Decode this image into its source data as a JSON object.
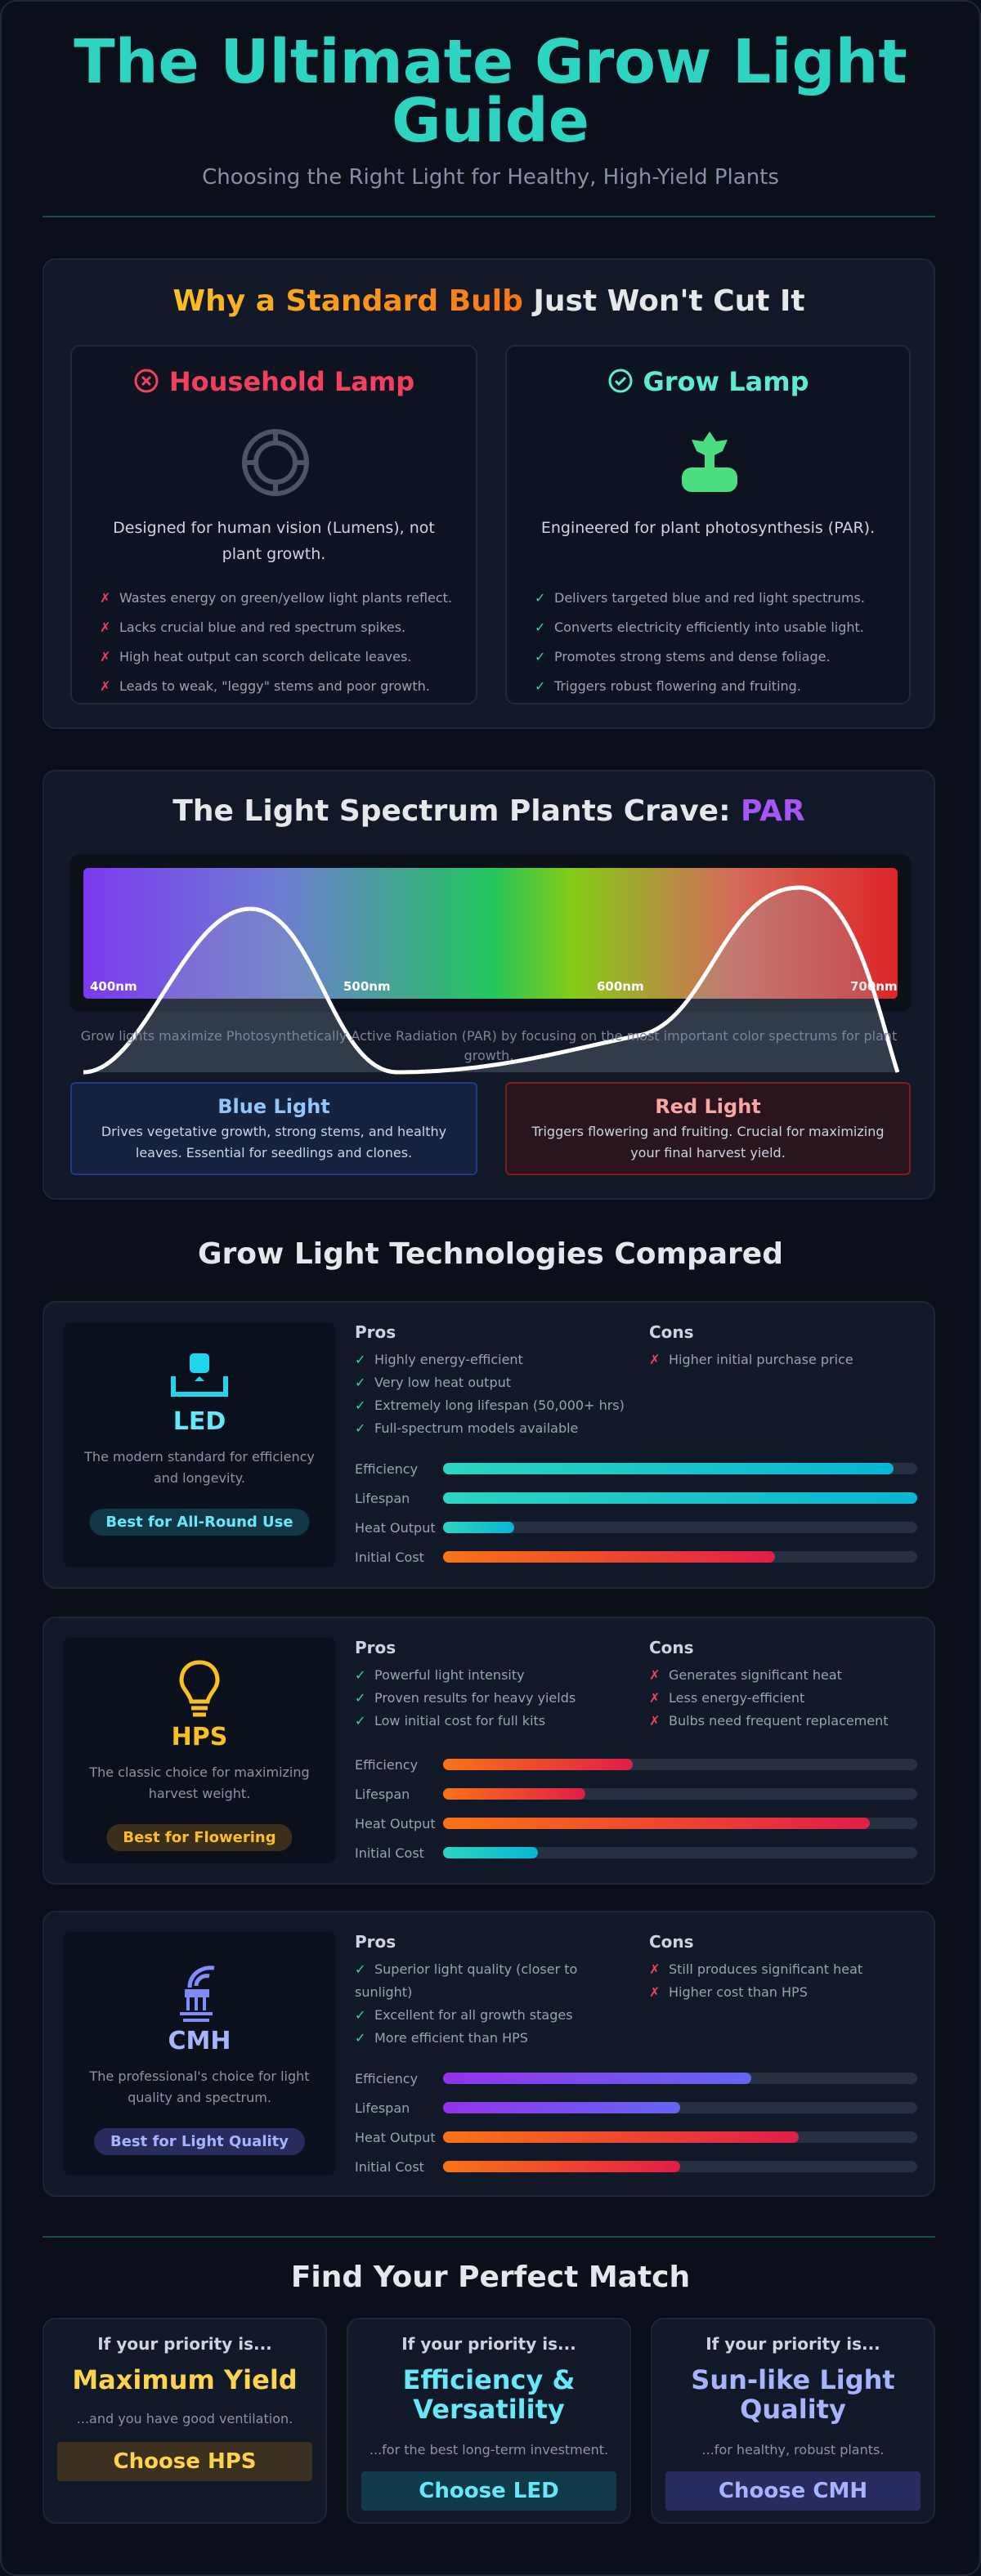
{
  "header": {
    "title": "The Ultimate Grow Light Guide",
    "subtitle": "Choosing the Right Light for Healthy, High-Yield Plants"
  },
  "why": {
    "title_highlight": "Why a Standard Bulb",
    "title_rest": "Just Won't Cut It",
    "household": {
      "title": "Household Lamp",
      "description": "Designed for human vision (Lumens), not plant growth.",
      "points": [
        "Wastes energy on green/yellow light plants reflect.",
        "Lacks crucial blue and red spectrum spikes.",
        "High heat output can scorch delicate leaves.",
        "Leads to weak, \"leggy\" stems and poor growth."
      ]
    },
    "grow": {
      "title": "Grow Lamp",
      "description": "Engineered for plant photosynthesis (PAR).",
      "points": [
        "Delivers targeted blue and red light spectrums.",
        "Converts electricity efficiently into usable light.",
        "Promotes strong stems and dense foliage.",
        "Triggers robust flowering and fruiting."
      ]
    }
  },
  "spectrum": {
    "title": "The Light Spectrum Plants Crave:",
    "title_highlight": "PAR",
    "wavelengths": [
      "400nm",
      "500nm",
      "600nm",
      "700nm"
    ],
    "caption": "Grow lights maximize Photosynthetically Active Radiation (PAR) by focusing on the most important color spectrums for plant growth.",
    "blue": {
      "title": "Blue Light",
      "text": "Drives vegetative growth, strong stems, and healthy leaves. Essential for seedlings and clones."
    },
    "red": {
      "title": "Red Light",
      "text": "Triggers flowering and fruiting. Crucial for maximizing your final harvest yield."
    }
  },
  "technologies": {
    "title": "Grow Light Technologies Compared",
    "pros_label": "Pros",
    "cons_label": "Cons",
    "items": [
      {
        "name": "LED",
        "description": "The modern standard for efficiency and longevity.",
        "badge": "Best for All-Round Use",
        "pros": [
          "Highly energy-efficient",
          "Very low heat output",
          "Extremely long lifespan (50,000+ hrs)",
          "Full-spectrum models available"
        ],
        "cons": [
          "Higher initial purchase price"
        ],
        "ratings": [
          {
            "label": "Efficiency",
            "value": 95,
            "colors": [
              "#2dd4bf",
              "#06b6d4"
            ]
          },
          {
            "label": "Lifespan",
            "value": 100,
            "colors": [
              "#2dd4bf",
              "#06b6d4"
            ]
          },
          {
            "label": "Heat Output",
            "value": 15,
            "colors": [
              "#2dd4bf",
              "#06b6d4"
            ]
          },
          {
            "label": "Initial Cost",
            "value": 70,
            "colors": [
              "#f97316",
              "#e11d48"
            ]
          }
        ]
      },
      {
        "name": "HPS",
        "description": "The classic choice for maximizing harvest weight.",
        "badge": "Best for Flowering",
        "pros": [
          "Powerful light intensity",
          "Proven results for heavy yields",
          "Low initial cost for full kits"
        ],
        "cons": [
          "Generates significant heat",
          "Less energy-efficient",
          "Bulbs need frequent replacement"
        ],
        "ratings": [
          {
            "label": "Efficiency",
            "value": 40,
            "colors": [
              "#f97316",
              "#e11d48"
            ]
          },
          {
            "label": "Lifespan",
            "value": 30,
            "colors": [
              "#f97316",
              "#e11d48"
            ]
          },
          {
            "label": "Heat Output",
            "value": 90,
            "colors": [
              "#f97316",
              "#e11d48"
            ]
          },
          {
            "label": "Initial Cost",
            "value": 20,
            "colors": [
              "#2dd4bf",
              "#06b6d4"
            ]
          }
        ]
      },
      {
        "name": "CMH",
        "description": "The professional's choice for light quality and spectrum.",
        "badge": "Best for Light Quality",
        "pros": [
          "Superior light quality (closer to sunlight)",
          "Excellent for all growth stages",
          "More efficient than HPS"
        ],
        "cons": [
          "Still produces significant heat",
          "Higher cost than HPS"
        ],
        "ratings": [
          {
            "label": "Efficiency",
            "value": 65,
            "colors": [
              "#9333ea",
              "#6366f1"
            ]
          },
          {
            "label": "Lifespan",
            "value": 50,
            "colors": [
              "#9333ea",
              "#6366f1"
            ]
          },
          {
            "label": "Heat Output",
            "value": 75,
            "colors": [
              "#f97316",
              "#e11d48"
            ]
          },
          {
            "label": "Initial Cost",
            "value": 50,
            "colors": [
              "#f97316",
              "#e11d48"
            ]
          }
        ]
      }
    ]
  },
  "match": {
    "title": "Find Your Perfect Match",
    "cards": [
      {
        "lead": "If your priority is...",
        "priority": "Maximum Yield",
        "note": "...and you have good ventilation.",
        "button": "Choose HPS"
      },
      {
        "lead": "If your priority is...",
        "priority": "Efficiency & Versatility",
        "note": "...for the best long-term investment.",
        "button": "Choose LED"
      },
      {
        "lead": "If your priority is...",
        "priority": "Sun-like Light Quality",
        "note": "...for healthy, robust plants.",
        "button": "Choose CMH"
      }
    ]
  }
}
